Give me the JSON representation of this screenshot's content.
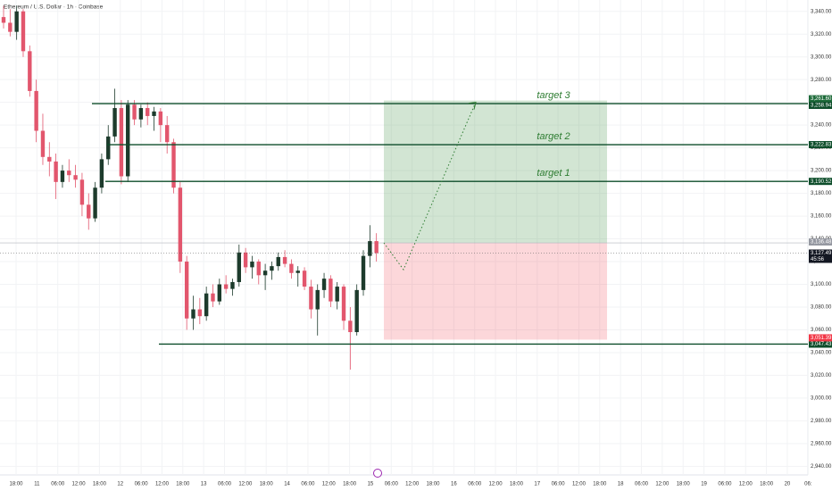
{
  "chart_data": {
    "type": "candlestick",
    "title": "Ethereum / U.S. Dollar · 1h · Coinbase",
    "up_color": "#1d3b2c",
    "down_color": "#e2566d",
    "grid": true,
    "ylim": [
      2934,
      3350
    ],
    "yticks": [
      {
        "value": 3340,
        "label": "3,340.00"
      },
      {
        "value": 3320,
        "label": "3,320.00"
      },
      {
        "value": 3300,
        "label": "3,300.00"
      },
      {
        "value": 3280,
        "label": "3,280.00"
      },
      {
        "value": 3260,
        "label": "3,260.00"
      },
      {
        "value": 3240,
        "label": "3,240.00"
      },
      {
        "value": 3220,
        "label": "3,220.00"
      },
      {
        "value": 3200,
        "label": "3,200.00"
      },
      {
        "value": 3180,
        "label": "3,180.00"
      },
      {
        "value": 3160,
        "label": "3,160.00"
      },
      {
        "value": 3140,
        "label": "3,140.00"
      },
      {
        "value": 3120,
        "label": "3,120.00"
      },
      {
        "value": 3100,
        "label": "3,100.00"
      },
      {
        "value": 3080,
        "label": "3,080.00"
      },
      {
        "value": 3060,
        "label": "3,060.00"
      },
      {
        "value": 3040,
        "label": "3,040.00"
      },
      {
        "value": 3020,
        "label": "3,020.00"
      },
      {
        "value": 3000,
        "label": "3,000.00"
      },
      {
        "value": 2980,
        "label": "2,980.00"
      },
      {
        "value": 2960,
        "label": "2,960.00"
      },
      {
        "value": 2940,
        "label": "2,940.00"
      }
    ],
    "x_labels": [
      "18:00",
      "11",
      "06:00",
      "12:00",
      "18:00",
      "12",
      "06:00",
      "12:00",
      "18:00",
      "13",
      "06:00",
      "12:00",
      "18:00",
      "14",
      "06:00",
      "12:00",
      "18:00",
      "15",
      "06:00",
      "12:00",
      "18:00",
      "16",
      "06:00",
      "12:00",
      "18:00",
      "17",
      "06:00",
      "12:00",
      "18:00",
      "18",
      "06:00",
      "12:00",
      "18:00",
      "19",
      "06:00",
      "12:00",
      "18:00",
      "20",
      "06:"
    ],
    "open": [
      3335,
      3330,
      3322,
      3340,
      3305,
      3270,
      3235,
      3212,
      3208,
      3190,
      3200,
      3196,
      3192,
      3170,
      3158,
      3185,
      3210,
      3230,
      3255,
      3195,
      3258,
      3245,
      3255,
      3248,
      3252,
      3240,
      3225,
      3185,
      3120,
      3070,
      3078,
      3072,
      3092,
      3085,
      3100,
      3096,
      3102,
      3128,
      3115,
      3120,
      3108,
      3112,
      3116,
      3124,
      3118,
      3110,
      3112,
      3098,
      3078,
      3095,
      3105,
      3085,
      3098,
      3068,
      3058,
      3095,
      3125,
      3138
    ],
    "high": [
      3345,
      3342,
      3345,
      3342,
      3310,
      3280,
      3250,
      3225,
      3215,
      3205,
      3210,
      3205,
      3198,
      3180,
      3190,
      3215,
      3240,
      3272,
      3262,
      3262,
      3262,
      3258,
      3260,
      3256,
      3255,
      3248,
      3228,
      3190,
      3125,
      3090,
      3088,
      3098,
      3100,
      3105,
      3108,
      3105,
      3135,
      3132,
      3125,
      3122,
      3118,
      3120,
      3128,
      3130,
      3122,
      3116,
      3115,
      3104,
      3100,
      3110,
      3108,
      3102,
      3100,
      3080,
      3100,
      3130,
      3152,
      3145
    ],
    "low": [
      3325,
      3318,
      3315,
      3300,
      3265,
      3225,
      3205,
      3195,
      3175,
      3185,
      3190,
      3185,
      3160,
      3148,
      3155,
      3180,
      3205,
      3225,
      3188,
      3190,
      3240,
      3238,
      3240,
      3235,
      3225,
      3215,
      3180,
      3110,
      3060,
      3060,
      3065,
      3068,
      3080,
      3082,
      3092,
      3090,
      3098,
      3110,
      3105,
      3100,
      3095,
      3104,
      3112,
      3115,
      3105,
      3098,
      3095,
      3070,
      3055,
      3088,
      3080,
      3078,
      3060,
      3025,
      3055,
      3090,
      3115,
      3120
    ],
    "close": [
      3330,
      3322,
      3340,
      3305,
      3270,
      3235,
      3212,
      3208,
      3190,
      3200,
      3196,
      3192,
      3170,
      3158,
      3185,
      3210,
      3230,
      3255,
      3195,
      3258,
      3245,
      3255,
      3248,
      3252,
      3240,
      3225,
      3185,
      3120,
      3070,
      3078,
      3072,
      3092,
      3085,
      3100,
      3096,
      3102,
      3128,
      3115,
      3120,
      3108,
      3112,
      3116,
      3124,
      3118,
      3110,
      3112,
      3098,
      3078,
      3095,
      3105,
      3085,
      3098,
      3068,
      3058,
      3095,
      3125,
      3138,
      3127.49
    ],
    "levels": [
      {
        "name": "target 3",
        "value": 3258.94,
        "label": "3,258.94"
      },
      {
        "name": "target 2",
        "value": 3222.83,
        "label": "3,222.83"
      },
      {
        "name": "target 1",
        "value": 3190.52,
        "label": "3,190.52"
      },
      {
        "value": 3047.43,
        "label": "3,047.43"
      }
    ],
    "position": {
      "target": 3261.6,
      "target_label": "3,261.60",
      "entry": 3136.48,
      "entry_label": "3,136.48",
      "stop": 3051.39,
      "stop_label": "3,051.39"
    },
    "last_price": 3127.49,
    "last_price_label": "3,127.49",
    "countdown": "45:56"
  }
}
